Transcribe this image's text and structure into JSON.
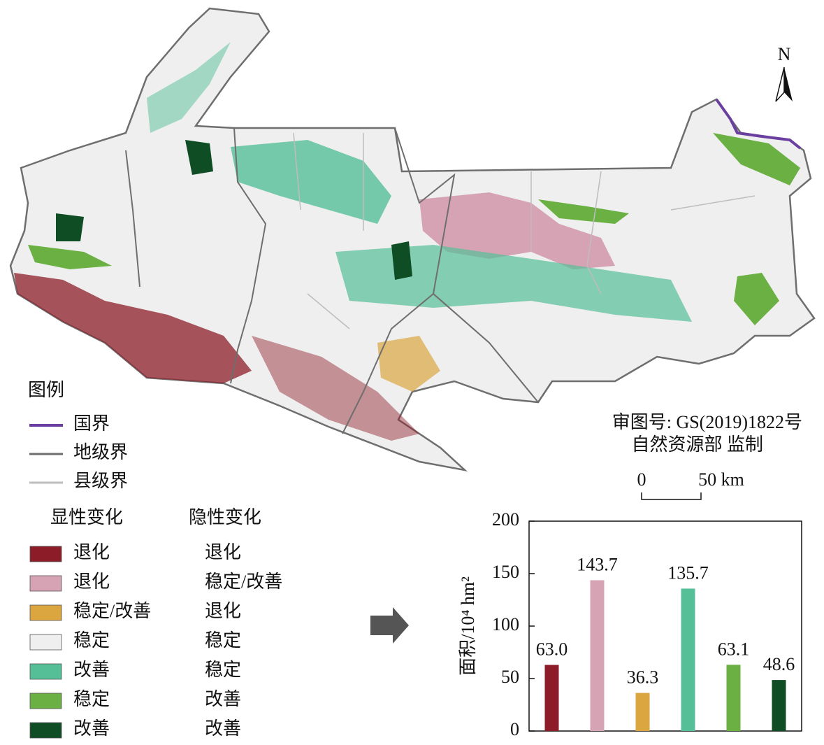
{
  "map": {
    "north_label": "N",
    "approval": [
      "审图号: GS(2019)1822号",
      "自然资源部 监制"
    ],
    "scale": {
      "labels": [
        "0",
        "50 km"
      ]
    }
  },
  "legend": {
    "title": "图例",
    "lines": [
      {
        "label": "国界",
        "color": "#6b3fa0"
      },
      {
        "label": "地级界",
        "color": "#6e6e6e"
      },
      {
        "label": "县级界",
        "color": "#bdbdbd"
      }
    ],
    "columns": [
      "显性变化",
      "隐性变化"
    ],
    "classes": [
      {
        "color": "#8c1d28",
        "explicit": "退化",
        "implicit": "退化"
      },
      {
        "color": "#d6a3b5",
        "explicit": "退化",
        "implicit": "稳定/改善"
      },
      {
        "color": "#dba640",
        "explicit": "稳定/改善",
        "implicit": "退化"
      },
      {
        "color": "#efefef",
        "explicit": "稳定",
        "implicit": "稳定"
      },
      {
        "color": "#55bf98",
        "explicit": "改善",
        "implicit": "稳定"
      },
      {
        "color": "#6bb043",
        "explicit": "稳定",
        "implicit": "改善"
      },
      {
        "color": "#0f4d25",
        "explicit": "改善",
        "implicit": "改善"
      }
    ]
  },
  "chart_data": {
    "type": "bar",
    "ylabel": "面积/10⁴ hm²",
    "categories": [
      null,
      null,
      null,
      null,
      null,
      null
    ],
    "values": [
      63.0,
      143.7,
      36.3,
      135.7,
      63.1,
      48.6
    ],
    "value_labels": [
      "63.0",
      "143.7",
      "36.3",
      "135.7",
      "63.1",
      "48.6"
    ],
    "colors": [
      "#8c1d28",
      "#d6a3b5",
      "#dba640",
      "#55bf98",
      "#6bb043",
      "#0f4d25"
    ],
    "ylim": [
      0,
      200
    ],
    "yticks": [
      0,
      50,
      100,
      150,
      200
    ]
  }
}
